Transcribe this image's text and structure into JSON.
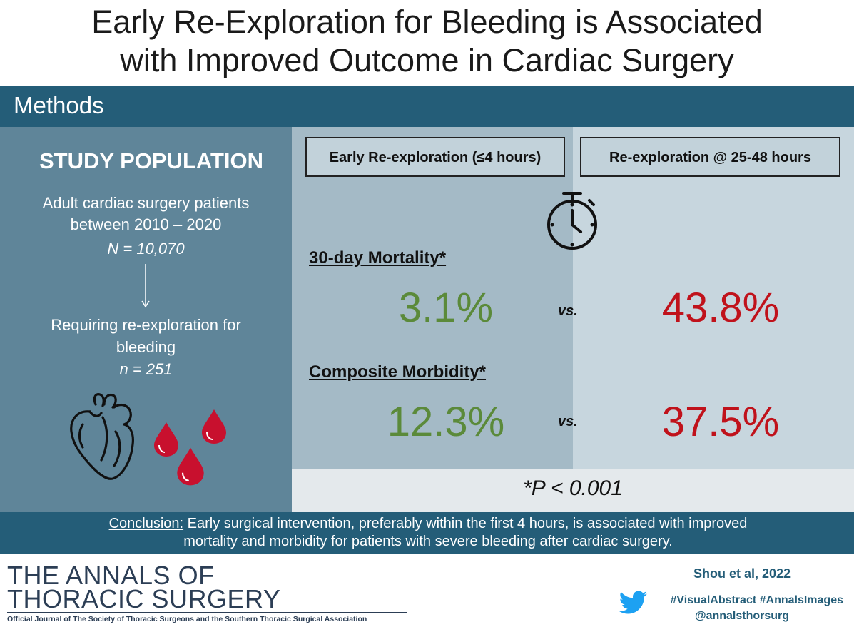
{
  "title": {
    "line1": "Early Re-Exploration for Bleeding is Associated",
    "line2": "with Improved Outcome in Cardiac Surgery"
  },
  "methods_label": "Methods",
  "study": {
    "heading": "STUDY POPULATION",
    "population_line1": "Adult cardiac surgery patients",
    "population_line2": "between 2010 – 2020",
    "population_n": "N = 10,070",
    "requiring_line1": "Requiring re-exploration for",
    "requiring_line2": "bleeding",
    "requiring_n": "n = 251"
  },
  "groups": {
    "early": "Early Re-exploration (≤4 hours)",
    "late": "Re-exploration @ 25-48 hours"
  },
  "outcomes": {
    "mortality": {
      "label": "30-day Mortality*",
      "early": "3.1%",
      "late": "43.8%"
    },
    "morbidity": {
      "label": "Composite Morbidity*",
      "early": "12.3%",
      "late": "37.5%"
    },
    "vs": "vs."
  },
  "p_value": "*P < 0.001",
  "conclusion": {
    "label": "Conclusion:",
    "text1": " Early surgical intervention, preferably within the first 4 hours, is associated with improved",
    "text2": "mortality and morbidity for patients with severe bleeding after cardiac surgery."
  },
  "footer": {
    "journal_line1": "THE ANNALS OF",
    "journal_line2": "THORACIC SURGERY",
    "journal_sub": "Official Journal of The Society of Thoracic Surgeons and the Southern Thoracic Surgical Association",
    "citation": "Shou et al, 2022",
    "hashtags": "#VisualAbstract #AnnalsImages",
    "handle": "@annalsthorsurg"
  },
  "colors": {
    "header_band": "#245d78",
    "left_panel": "#5f8599",
    "early_panel": "#a4bac6",
    "late_panel": "#c7d6de",
    "good": "#5b8a3a",
    "bad": "#c0121b"
  },
  "icons": [
    "stopwatch-icon",
    "heart-icon",
    "blood-drop-icon",
    "down-arrow-icon",
    "twitter-bird-icon"
  ]
}
